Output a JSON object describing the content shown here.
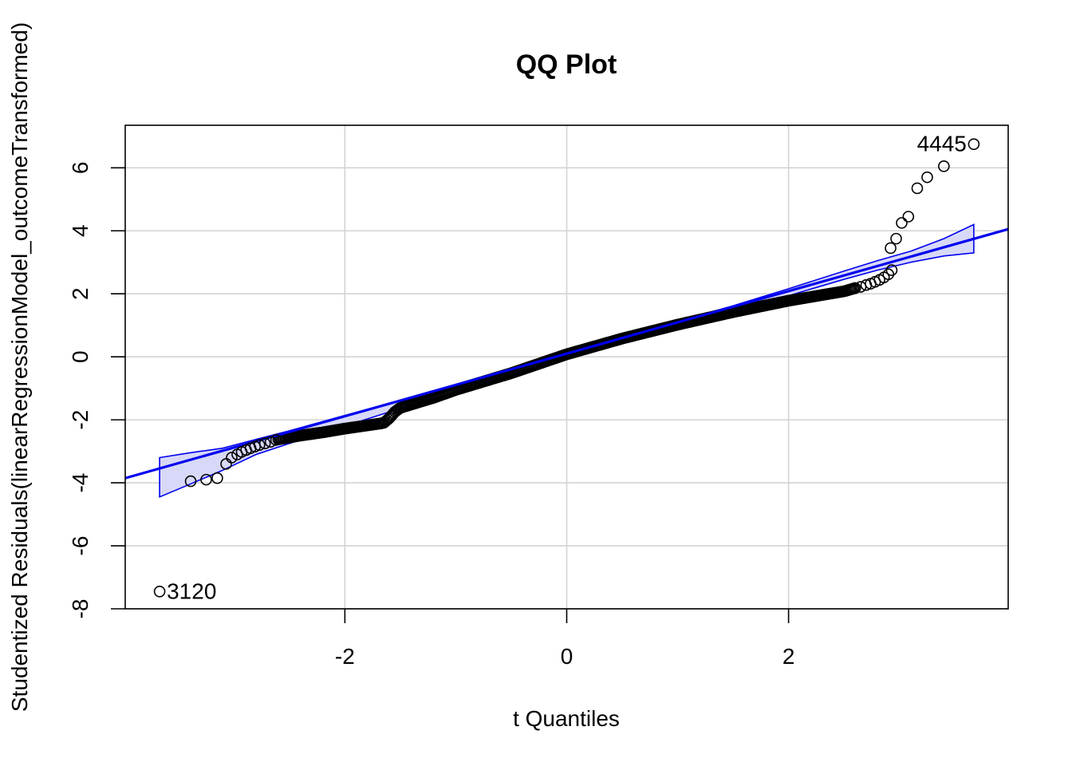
{
  "chart_data": {
    "type": "scatter",
    "title": "QQ Plot",
    "xlabel": "t Quantiles",
    "ylabel": "Studentized Residuals(linearRegressionModel_outcomeTransformed)",
    "xlim": [
      -3.98,
      3.98
    ],
    "ylim": [
      -8,
      7.35
    ],
    "x_ticks": [
      -2,
      0,
      2
    ],
    "x_tick_labels": [
      "-2",
      "0",
      "2"
    ],
    "y_ticks": [
      -8,
      -6,
      -4,
      -2,
      0,
      2,
      4,
      6
    ],
    "y_tick_labels": [
      "-8",
      "-6",
      "-4",
      "-2",
      "0",
      "2",
      "4",
      "6"
    ],
    "grid": true,
    "colors": {
      "line": "#0000ee",
      "band_fill": "#d8d8f8",
      "points": "#000000",
      "grid": "#d3d3d3"
    },
    "reference_line": {
      "slope": 0.993,
      "intercept": 0.1
    },
    "envelope": {
      "x": [
        -3.67,
        -3.4,
        -3.1,
        -2.8,
        -2.5,
        -2.0,
        -1.5,
        -1.0,
        -0.5,
        0.0,
        0.5,
        1.0,
        1.5,
        2.0,
        2.5,
        2.8,
        3.1,
        3.4,
        3.67
      ],
      "upper": [
        -3.2,
        -3.05,
        -2.9,
        -2.62,
        -2.35,
        -1.86,
        -1.38,
        -0.9,
        -0.42,
        0.14,
        0.62,
        1.12,
        1.62,
        2.16,
        2.72,
        3.05,
        3.35,
        3.75,
        4.2
      ],
      "lower": [
        -4.45,
        -4.05,
        -3.6,
        -3.1,
        -2.75,
        -2.2,
        -1.64,
        -1.12,
        -0.62,
        0.06,
        0.54,
        1.02,
        1.49,
        1.94,
        2.46,
        2.75,
        3.0,
        3.2,
        3.3
      ]
    },
    "points": [
      {
        "x": -3.67,
        "y": -7.45,
        "label": "3120"
      },
      {
        "x": -3.39,
        "y": -3.95
      },
      {
        "x": -3.25,
        "y": -3.9
      },
      {
        "x": -3.15,
        "y": -3.85
      },
      {
        "x": -3.07,
        "y": -3.4
      },
      {
        "x": -3.02,
        "y": -3.2
      },
      {
        "x": -2.97,
        "y": -3.1
      },
      {
        "x": -2.93,
        "y": -3.02
      },
      {
        "x": -2.89,
        "y": -2.96
      },
      {
        "x": -2.85,
        "y": -2.9
      },
      {
        "x": -2.81,
        "y": -2.85
      },
      {
        "x": -2.77,
        "y": -2.8
      },
      {
        "x": -2.72,
        "y": -2.75
      },
      {
        "x": -2.67,
        "y": -2.7
      },
      {
        "x": -2.62,
        "y": -2.64
      },
      {
        "x": 2.6,
        "y": 2.18
      },
      {
        "x": 2.65,
        "y": 2.22
      },
      {
        "x": 2.7,
        "y": 2.28
      },
      {
        "x": 2.74,
        "y": 2.32
      },
      {
        "x": 2.78,
        "y": 2.38
      },
      {
        "x": 2.82,
        "y": 2.44
      },
      {
        "x": 2.86,
        "y": 2.52
      },
      {
        "x": 2.9,
        "y": 2.62
      },
      {
        "x": 2.93,
        "y": 2.75
      },
      {
        "x": 2.92,
        "y": 3.45
      },
      {
        "x": 2.97,
        "y": 3.75
      },
      {
        "x": 3.02,
        "y": 4.25
      },
      {
        "x": 3.08,
        "y": 4.45
      },
      {
        "x": 3.16,
        "y": 5.35
      },
      {
        "x": 3.25,
        "y": 5.7
      },
      {
        "x": 3.4,
        "y": 6.05
      },
      {
        "x": 3.67,
        "y": 6.75,
        "label": "4445"
      }
    ],
    "dense_curve": {
      "x": [
        -2.6,
        -2.4,
        -2.2,
        -2.0,
        -1.8,
        -1.65,
        -1.6,
        -1.55,
        -1.5,
        -1.2,
        -1.0,
        -0.5,
        0.0,
        0.5,
        1.0,
        1.5,
        2.0,
        2.3,
        2.5,
        2.6
      ],
      "y": [
        -2.62,
        -2.5,
        -2.4,
        -2.28,
        -2.18,
        -2.1,
        -1.95,
        -1.75,
        -1.62,
        -1.3,
        -1.05,
        -0.52,
        0.08,
        0.58,
        1.02,
        1.42,
        1.78,
        1.96,
        2.08,
        2.18
      ]
    }
  }
}
